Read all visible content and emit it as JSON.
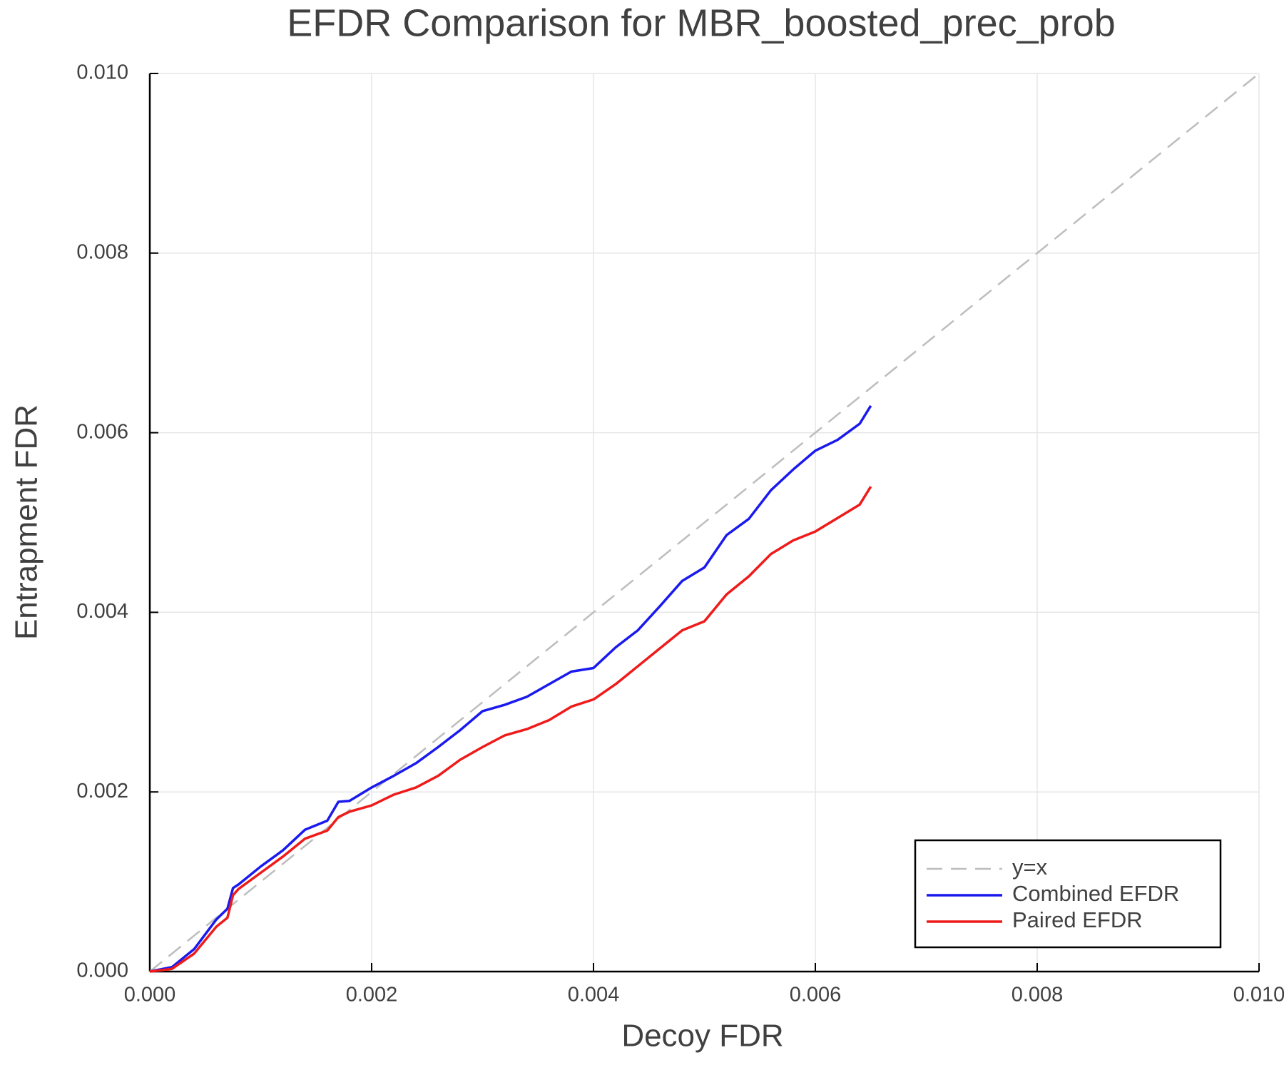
{
  "chart_data": {
    "type": "line",
    "title": "EFDR Comparison for MBR_boosted_prec_prob",
    "xlabel": "Decoy FDR",
    "ylabel": "Entrapment FDR",
    "xlim": [
      0,
      0.01
    ],
    "ylim": [
      0,
      0.01
    ],
    "xticks": [
      {
        "value": 0,
        "label": "0.000"
      },
      {
        "value": 0.002,
        "label": "0.002"
      },
      {
        "value": 0.004,
        "label": "0.004"
      },
      {
        "value": 0.006,
        "label": "0.006"
      },
      {
        "value": 0.008,
        "label": "0.008"
      },
      {
        "value": 0.01,
        "label": "0.010"
      }
    ],
    "yticks": [
      {
        "value": 0,
        "label": "0.000"
      },
      {
        "value": 0.002,
        "label": "0.002"
      },
      {
        "value": 0.004,
        "label": "0.004"
      },
      {
        "value": 0.006,
        "label": "0.006"
      },
      {
        "value": 0.008,
        "label": "0.008"
      },
      {
        "value": 0.01,
        "label": "0.010"
      }
    ],
    "grid": true,
    "legend": "bottom right",
    "series": [
      {
        "name": "y=x",
        "color": "#bdbdbd",
        "dashed": true,
        "x": [
          0,
          0.01
        ],
        "values": [
          0,
          0.01
        ]
      },
      {
        "name": "Combined EFDR",
        "color": "#1a1aef",
        "dashed": false,
        "x": [
          0,
          0.0002,
          0.0004,
          0.0006,
          0.0007,
          0.00075,
          0.0008,
          0.001,
          0.0012,
          0.0014,
          0.0016,
          0.0017,
          0.0018,
          0.002,
          0.0022,
          0.0024,
          0.0026,
          0.0028,
          0.003,
          0.0032,
          0.0034,
          0.0036,
          0.0038,
          0.004,
          0.0042,
          0.0044,
          0.0046,
          0.0048,
          0.005,
          0.0052,
          0.0054,
          0.0056,
          0.0058,
          0.006,
          0.0062,
          0.0064,
          0.0065
        ],
        "values": [
          0,
          5e-05,
          0.00025,
          0.00058,
          0.0007,
          0.00093,
          0.00097,
          0.00117,
          0.00135,
          0.00158,
          0.00168,
          0.00189,
          0.0019,
          0.00205,
          0.00218,
          0.00232,
          0.0025,
          0.00269,
          0.0029,
          0.00297,
          0.00306,
          0.0032,
          0.00334,
          0.00338,
          0.00361,
          0.0038,
          0.00407,
          0.00435,
          0.0045,
          0.00486,
          0.00504,
          0.00536,
          0.00559,
          0.0058,
          0.00592,
          0.0061,
          0.0063
        ]
      },
      {
        "name": "Paired EFDR",
        "color": "#ef1a1a",
        "dashed": false,
        "x": [
          0,
          0.0002,
          0.0004,
          0.0006,
          0.0007,
          0.00075,
          0.0008,
          0.001,
          0.0012,
          0.0014,
          0.0016,
          0.0017,
          0.0018,
          0.002,
          0.0022,
          0.0024,
          0.0026,
          0.0028,
          0.003,
          0.0032,
          0.0034,
          0.0036,
          0.0038,
          0.004,
          0.0042,
          0.0044,
          0.0046,
          0.0048,
          0.005,
          0.0052,
          0.0054,
          0.0056,
          0.0058,
          0.006,
          0.0062,
          0.0064,
          0.0065
        ],
        "values": [
          0,
          3e-05,
          0.0002,
          0.0005,
          0.0006,
          0.00085,
          0.00092,
          0.0011,
          0.00128,
          0.00148,
          0.00157,
          0.00172,
          0.00178,
          0.00185,
          0.00197,
          0.00205,
          0.00218,
          0.00236,
          0.0025,
          0.00263,
          0.0027,
          0.0028,
          0.00295,
          0.00303,
          0.0032,
          0.0034,
          0.0036,
          0.0038,
          0.0039,
          0.0042,
          0.0044,
          0.00465,
          0.0048,
          0.0049,
          0.00505,
          0.0052,
          0.0054
        ]
      }
    ]
  }
}
